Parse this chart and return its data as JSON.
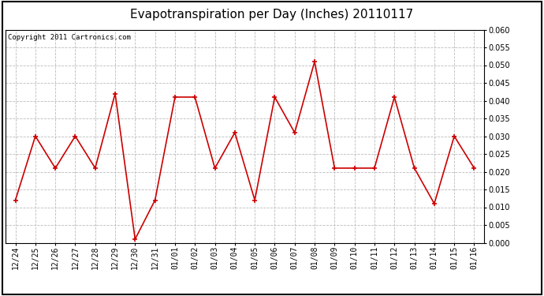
{
  "title": "Evapotranspiration per Day (Inches) 20110117",
  "copyright_text": "Copyright 2011 Cartronics.com",
  "labels": [
    "12/24",
    "12/25",
    "12/26",
    "12/27",
    "12/28",
    "12/29",
    "12/30",
    "12/31",
    "01/01",
    "01/02",
    "01/03",
    "01/04",
    "01/05",
    "01/06",
    "01/07",
    "01/08",
    "01/09",
    "01/10",
    "01/11",
    "01/12",
    "01/13",
    "01/14",
    "01/15",
    "01/16"
  ],
  "values": [
    0.012,
    0.03,
    0.021,
    0.03,
    0.021,
    0.042,
    0.001,
    0.012,
    0.041,
    0.041,
    0.021,
    0.031,
    0.012,
    0.041,
    0.031,
    0.051,
    0.021,
    0.021,
    0.021,
    0.041,
    0.021,
    0.011,
    0.03,
    0.021
  ],
  "line_color": "#cc0000",
  "marker": "+",
  "marker_size": 5,
  "marker_linewidth": 1.2,
  "line_width": 1.2,
  "ylim": [
    0.0,
    0.06
  ],
  "ytick_step": 0.005,
  "grid_color": "#bbbbbb",
  "grid_style": "--",
  "bg_color": "#ffffff",
  "plot_bg_color": "#ffffff",
  "title_fontsize": 11,
  "copyright_fontsize": 6.5,
  "tick_fontsize": 7,
  "border_color": "#000000"
}
